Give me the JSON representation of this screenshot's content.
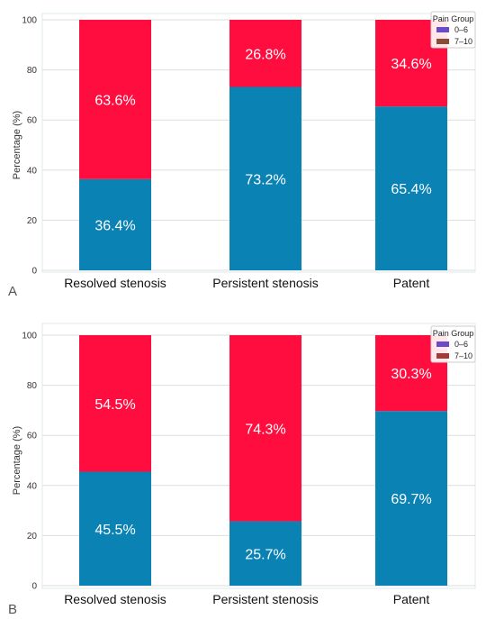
{
  "colors": {
    "blue": "#0a82b3",
    "red": "#ff0d3f",
    "legend_blue": "#6a4bc7",
    "legend_brown": "#8b4a33",
    "grid": "#dddddd",
    "frame": "#dfe8ef"
  },
  "chart_data": [
    {
      "type": "bar",
      "panel_label": "A",
      "categories": [
        "Resolved stenosis",
        "Persistent stenosis",
        "Patent"
      ],
      "ylabel": "Percentage (%)",
      "ylim": [
        0,
        100
      ],
      "yticks": [
        0,
        20,
        40,
        60,
        80,
        100
      ],
      "grid": true,
      "legend": {
        "title": "Pain Group",
        "placement": "top-right",
        "entries": [
          "0–6",
          "7–10"
        ]
      },
      "series": [
        {
          "name": "0–6",
          "values": [
            36.4,
            73.2,
            65.4
          ],
          "labels": [
            "36.4%",
            "73.2%",
            "65.4%"
          ]
        },
        {
          "name": "7–10",
          "values": [
            63.6,
            26.8,
            34.6
          ],
          "labels": [
            "63.6%",
            "26.8%",
            "34.6%"
          ]
        }
      ]
    },
    {
      "type": "bar",
      "panel_label": "B",
      "categories": [
        "Resolved stenosis",
        "Persistent stenosis",
        "Patent"
      ],
      "ylabel": "Percentage (%)",
      "ylim": [
        0,
        100
      ],
      "yticks": [
        0,
        20,
        40,
        60,
        80,
        100
      ],
      "grid": true,
      "legend": {
        "title": "Pain Group",
        "placement": "top-right",
        "entries": [
          "0–6",
          "7–10"
        ]
      },
      "series": [
        {
          "name": "0–6",
          "values": [
            45.5,
            25.7,
            69.7
          ],
          "labels": [
            "45.5%",
            "25.7%",
            "69.7%"
          ]
        },
        {
          "name": "7–10",
          "values": [
            54.5,
            74.3,
            30.3
          ],
          "labels": [
            "54.5%",
            "74.3%",
            "30.3%"
          ]
        }
      ]
    }
  ]
}
